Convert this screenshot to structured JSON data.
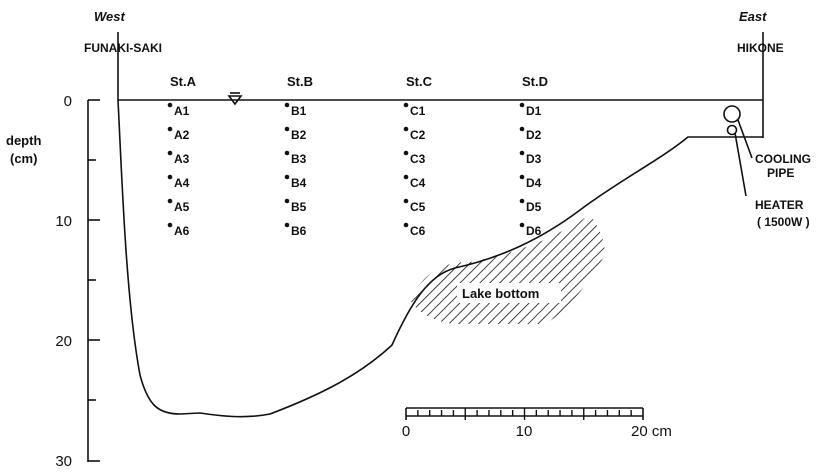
{
  "header": {
    "west_label": "West",
    "west_place": "FUNAKI-SAKI",
    "east_label": "East",
    "east_place": "HIKONE"
  },
  "depth_axis": {
    "label_line1": "depth",
    "label_line2": "(cm)",
    "ticks": [
      "0",
      "10",
      "20",
      "30"
    ]
  },
  "stations": [
    {
      "name": "St.A",
      "points": [
        "A1",
        "A2",
        "A3",
        "A4",
        "A5",
        "A6"
      ]
    },
    {
      "name": "St.B",
      "points": [
        "B1",
        "B2",
        "B3",
        "B4",
        "B5",
        "B6"
      ]
    },
    {
      "name": "St.C",
      "points": [
        "C1",
        "C2",
        "C3",
        "C4",
        "C5",
        "C6"
      ]
    },
    {
      "name": "St.D",
      "points": [
        "D1",
        "D2",
        "D3",
        "D4",
        "D5",
        "D6"
      ]
    }
  ],
  "annotations": {
    "lake_bottom": "Lake bottom",
    "cooling_pipe_line1": "COOLING",
    "cooling_pipe_line2": "PIPE",
    "heater_line1": "HEATER",
    "heater_line2": "( 1500W )"
  },
  "scale_bar": {
    "ticks": [
      "0",
      "10"
    ],
    "end_label": "20 cm"
  }
}
